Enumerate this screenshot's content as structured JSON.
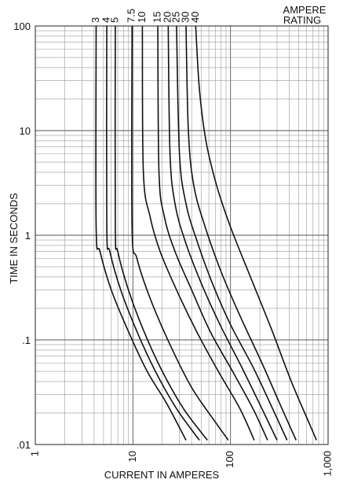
{
  "chart_data": {
    "type": "line",
    "title": "",
    "xlabel": "CURRENT IN AMPERES",
    "ylabel": "TIME IN SECONDS",
    "x_scale": "log",
    "y_scale": "log",
    "xlim": [
      1,
      1000
    ],
    "ylim": [
      0.01,
      100
    ],
    "x_tick_labels": [
      {
        "value": 1,
        "label": "1"
      },
      {
        "value": 10,
        "label": "10"
      },
      {
        "value": 100,
        "label": "100"
      },
      {
        "value": 1000,
        "label": "1,000"
      }
    ],
    "y_tick_labels": [
      {
        "value": 100,
        "label": "100"
      },
      {
        "value": 10,
        "label": "10"
      },
      {
        "value": 1,
        "label": "1"
      },
      {
        "value": 0.1,
        "label": ".1"
      },
      {
        "value": 0.01,
        "label": ".01"
      }
    ],
    "grid": true,
    "legend_title": "AMPERE\nRATING",
    "legend_placement": "top, curve labels above each curve",
    "series": [
      {
        "name": "3",
        "points": [
          [
            4.2,
            100
          ],
          [
            4.2,
            1.2
          ],
          [
            4.6,
            0.7
          ],
          [
            6,
            0.3
          ],
          [
            9,
            0.12
          ],
          [
            14,
            0.05
          ],
          [
            22,
            0.025
          ],
          [
            35,
            0.011
          ]
        ]
      },
      {
        "name": "4",
        "points": [
          [
            5.4,
            100
          ],
          [
            5.4,
            1.2
          ],
          [
            5.8,
            0.7
          ],
          [
            7.5,
            0.3
          ],
          [
            11,
            0.12
          ],
          [
            17,
            0.05
          ],
          [
            28,
            0.022
          ],
          [
            48,
            0.011
          ]
        ]
      },
      {
        "name": "5",
        "points": [
          [
            6.6,
            100
          ],
          [
            6.6,
            1.2
          ],
          [
            7.0,
            0.7
          ],
          [
            9,
            0.3
          ],
          [
            13,
            0.12
          ],
          [
            20,
            0.05
          ],
          [
            33,
            0.022
          ],
          [
            58,
            0.011
          ]
        ]
      },
      {
        "name": "7.5",
        "points": [
          [
            9.8,
            100
          ],
          [
            9.8,
            1.2
          ],
          [
            11,
            0.6
          ],
          [
            15,
            0.25
          ],
          [
            24,
            0.09
          ],
          [
            40,
            0.035
          ],
          [
            68,
            0.017
          ],
          [
            95,
            0.011
          ]
        ]
      },
      {
        "name": "10",
        "points": [
          [
            12.5,
            100
          ],
          [
            12.8,
            4
          ],
          [
            15,
            1.5
          ],
          [
            19,
            0.7
          ],
          [
            28,
            0.3
          ],
          [
            45,
            0.12
          ],
          [
            75,
            0.05
          ],
          [
            125,
            0.022
          ],
          [
            175,
            0.011
          ]
        ]
      },
      {
        "name": "15",
        "points": [
          [
            18,
            100
          ],
          [
            18.5,
            4
          ],
          [
            21,
            1.5
          ],
          [
            27,
            0.7
          ],
          [
            40,
            0.3
          ],
          [
            62,
            0.12
          ],
          [
            105,
            0.05
          ],
          [
            170,
            0.022
          ],
          [
            240,
            0.011
          ]
        ]
      },
      {
        "name": "20",
        "points": [
          [
            23,
            100
          ],
          [
            24,
            6
          ],
          [
            27,
            2
          ],
          [
            34,
            0.9
          ],
          [
            50,
            0.35
          ],
          [
            78,
            0.14
          ],
          [
            130,
            0.055
          ],
          [
            210,
            0.022
          ],
          [
            300,
            0.011
          ]
        ]
      },
      {
        "name": "25",
        "points": [
          [
            28,
            100
          ],
          [
            30,
            6
          ],
          [
            35,
            2
          ],
          [
            45,
            0.9
          ],
          [
            65,
            0.35
          ],
          [
            100,
            0.14
          ],
          [
            170,
            0.055
          ],
          [
            270,
            0.022
          ],
          [
            380,
            0.011
          ]
        ]
      },
      {
        "name": "30",
        "points": [
          [
            35,
            100
          ],
          [
            37,
            10
          ],
          [
            42,
            3
          ],
          [
            55,
            1.2
          ],
          [
            80,
            0.45
          ],
          [
            125,
            0.17
          ],
          [
            210,
            0.06
          ],
          [
            330,
            0.023
          ],
          [
            470,
            0.011
          ]
        ]
      },
      {
        "name": "40",
        "points": [
          [
            44,
            100
          ],
          [
            48,
            25
          ],
          [
            56,
            8
          ],
          [
            72,
            3
          ],
          [
            100,
            1.2
          ],
          [
            160,
            0.4
          ],
          [
            260,
            0.13
          ],
          [
            420,
            0.04
          ],
          [
            640,
            0.016
          ],
          [
            760,
            0.011
          ]
        ]
      }
    ]
  }
}
